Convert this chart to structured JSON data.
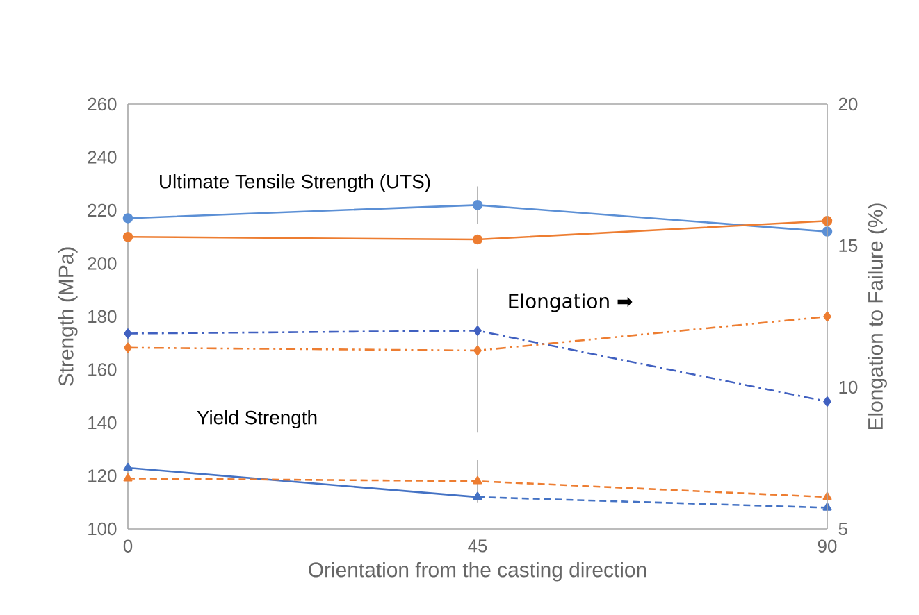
{
  "chart_data": {
    "type": "line",
    "xlabel": "Orientation from the casting direction",
    "ylabel": "Strength (MPa)",
    "y2label": "Elongation to Failure (%)",
    "x": [
      0,
      45,
      90
    ],
    "xlim": [
      0,
      90
    ],
    "xticks": [
      0,
      45,
      90
    ],
    "ylim": [
      100,
      260
    ],
    "yticks": [
      100,
      120,
      140,
      160,
      180,
      200,
      220,
      240,
      260
    ],
    "y2lim": [
      5,
      20
    ],
    "y2ticks": [
      5,
      10,
      15,
      20
    ],
    "grid": false,
    "annotations": [
      "Ultimate Tensile Strength (UTS)",
      "Elongation ➡",
      "Yield Strength"
    ],
    "series": [
      {
        "color": "#5b8fd5",
        "values": [
          217,
          222,
          212
        ],
        "marker": "circle",
        "line_style": "solid",
        "errors": [
          null,
          7,
          null
        ]
      },
      {
        "color": "#ed7d31",
        "values": [
          210,
          209,
          216
        ],
        "marker": "circle",
        "line_style": "solid"
      },
      {
        "color": "#4060c0",
        "values": [
          11.9,
          12.0,
          9.5
        ],
        "axis": "y2",
        "marker": "diamond",
        "line_style": "dashdot"
      },
      {
        "color": "#ed7d31",
        "values": [
          11.4,
          11.3,
          12.5
        ],
        "axis": "y2",
        "marker": "diamond",
        "line_style": "dashdotdot",
        "errors": [
          null,
          2.9,
          null
        ]
      },
      {
        "color": "#4472c4",
        "x": [
          0,
          45
        ],
        "values": [
          123,
          112
        ],
        "marker": "triangle",
        "line_style": "solid"
      },
      {
        "color": "#4472c4",
        "x": [
          45,
          90
        ],
        "values": [
          112,
          108
        ],
        "marker": "triangle",
        "line_style": "dashed"
      },
      {
        "color": "#ed7d31",
        "values": [
          119,
          118,
          112
        ],
        "marker": "triangle",
        "line_style": "dashed",
        "errors": [
          null,
          8,
          null
        ]
      }
    ]
  }
}
